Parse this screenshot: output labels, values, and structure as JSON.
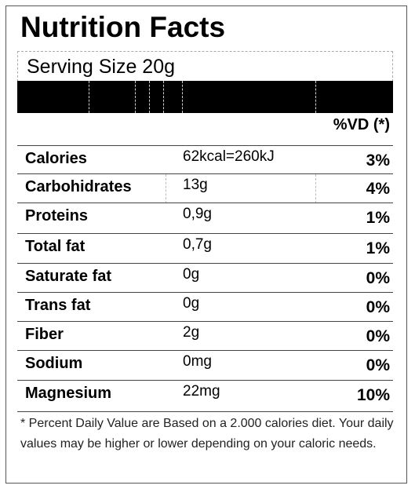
{
  "header": {
    "title": "Nutrition Facts",
    "serving_size": "Serving Size 20g"
  },
  "table": {
    "dv_header": "%VD (*)",
    "rows": [
      [
        "Calories",
        "62kcal=260kJ",
        "3%"
      ],
      [
        "Carbohidrates",
        "13g",
        "4%"
      ],
      [
        "Proteins",
        "0,9g",
        "1%"
      ],
      [
        "Total fat",
        "0,7g",
        "1%"
      ],
      [
        "Saturate fat",
        "0g",
        "0%"
      ],
      [
        "Trans fat",
        "0g",
        "0%"
      ],
      [
        "Fiber",
        "2g",
        "0%"
      ],
      [
        "Sodium",
        "0mg",
        "0%"
      ],
      [
        "Magnesium",
        "22mg",
        "10%"
      ]
    ]
  },
  "footnote": "* Percent Daily Value are Based on a 2.000 calories diet. Your daily values may be higher or lower depending on your caloric needs."
}
